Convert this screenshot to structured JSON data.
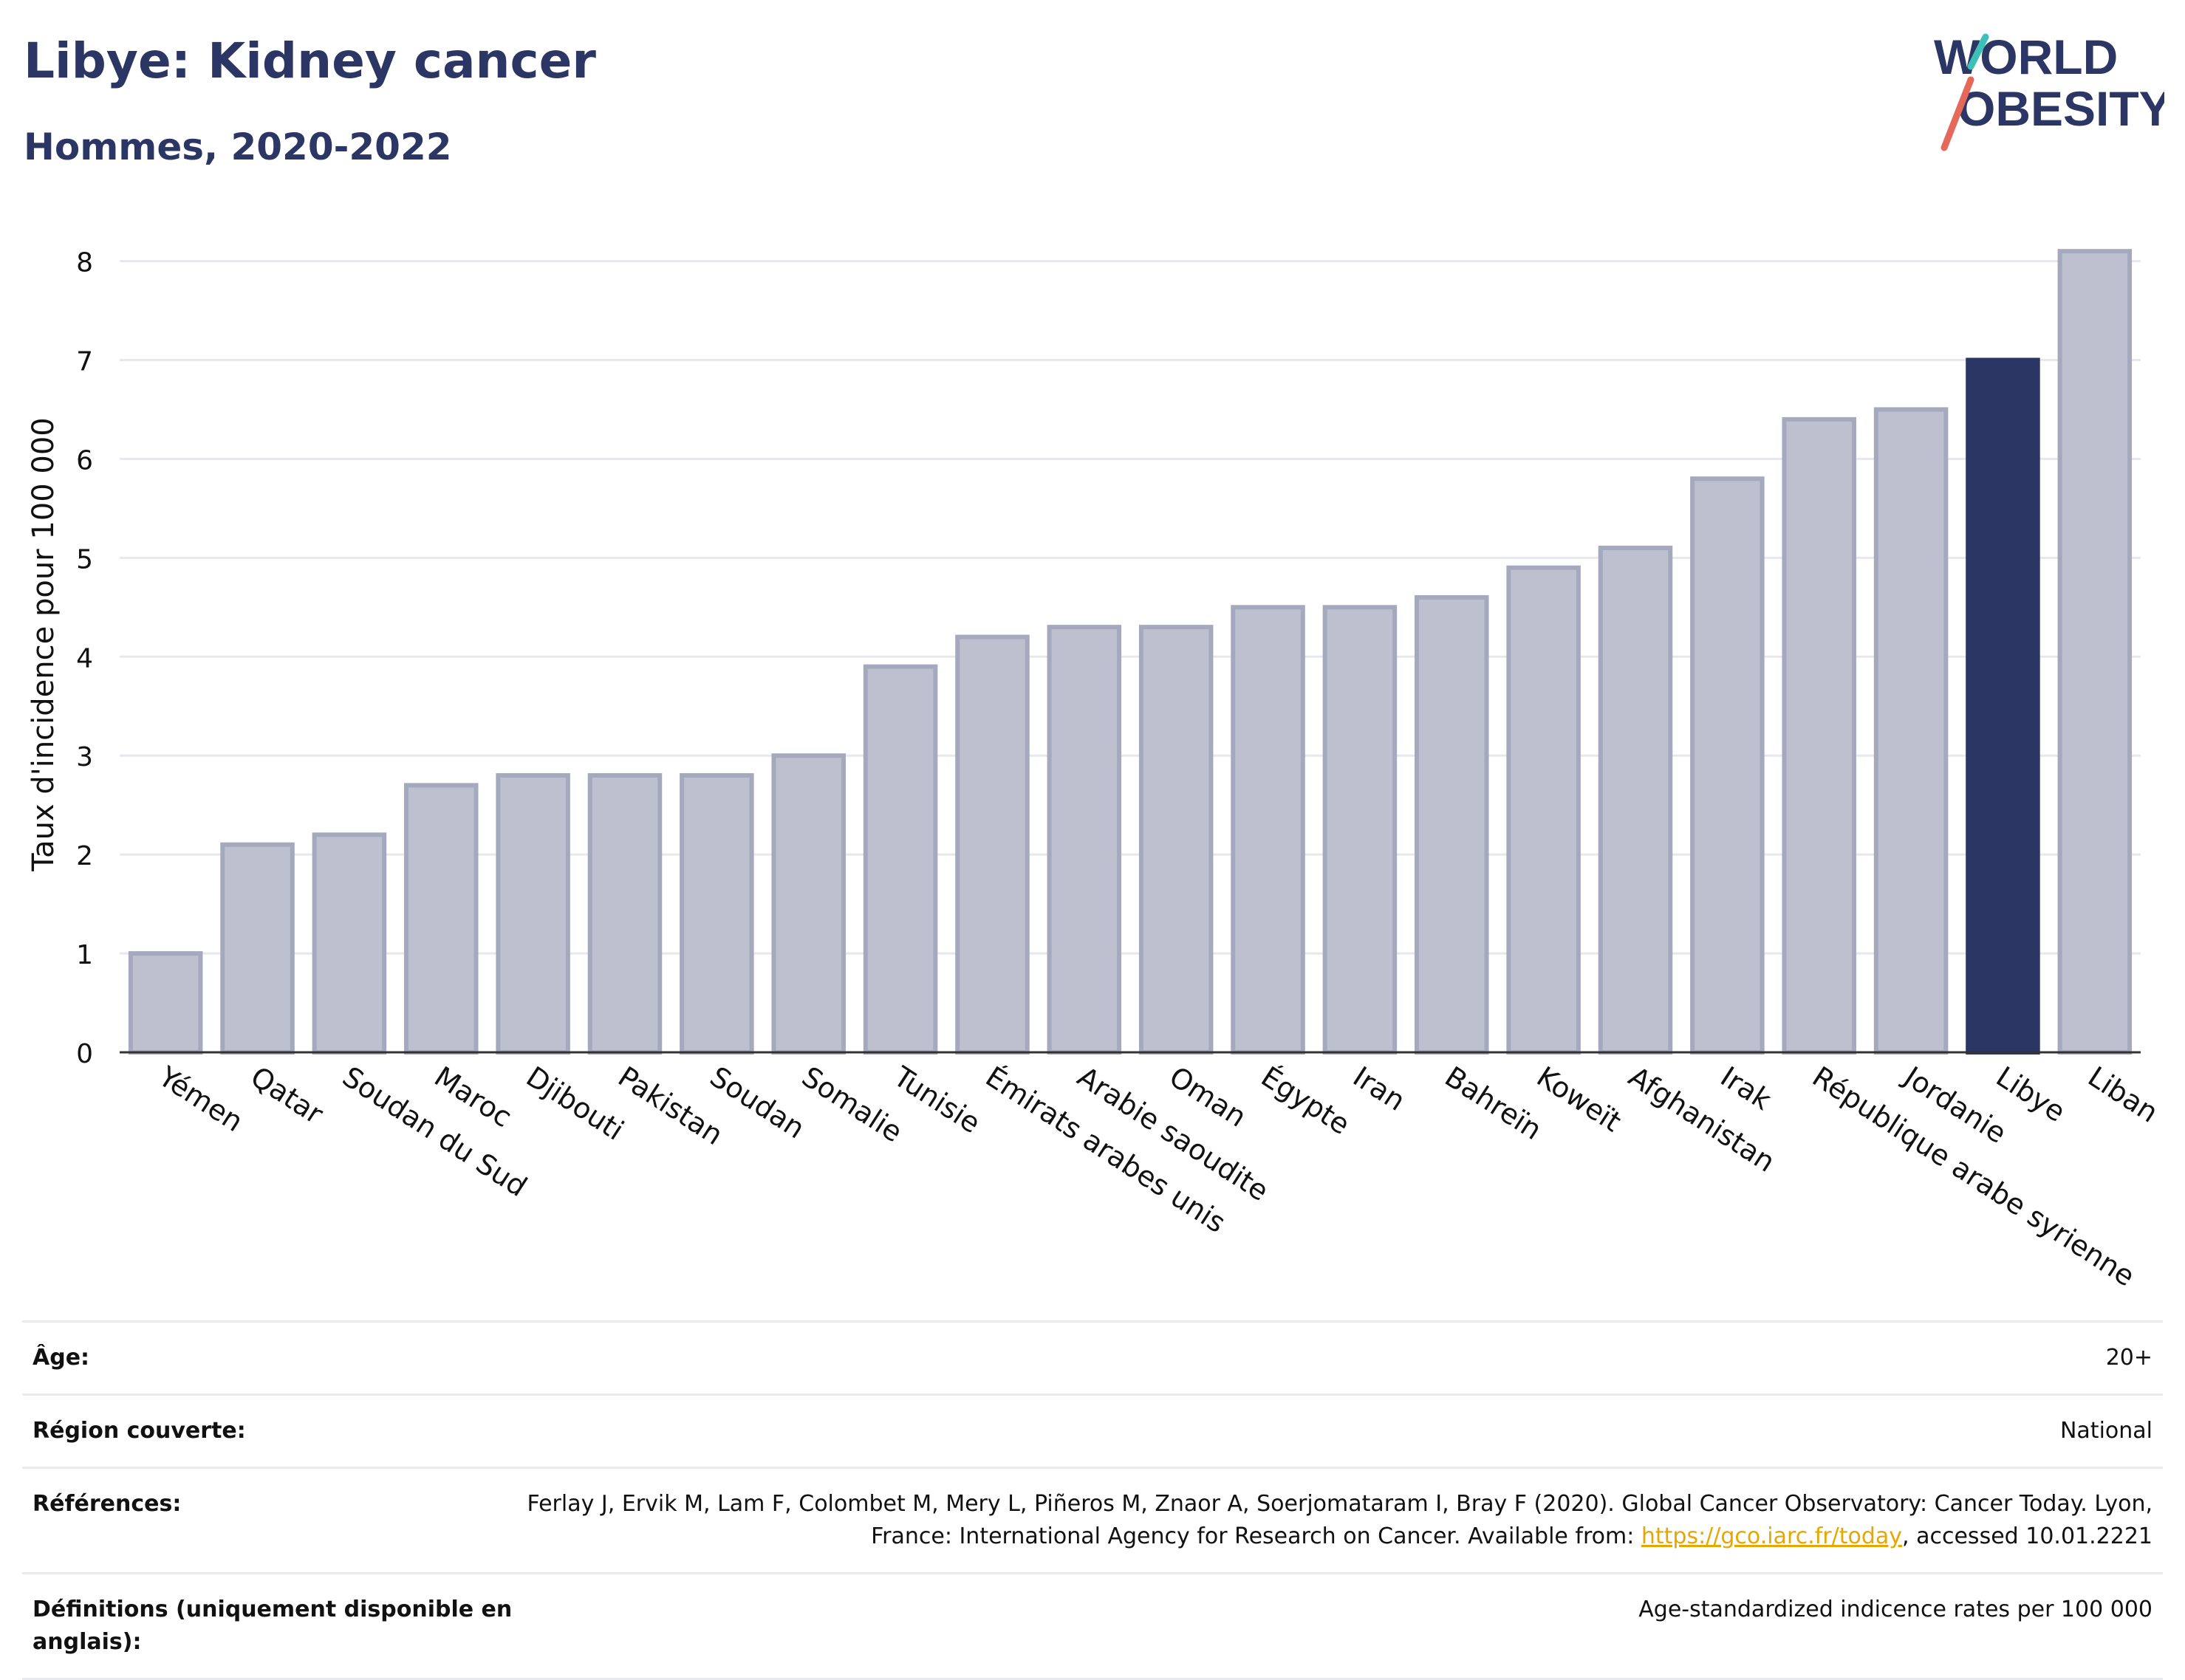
{
  "header": {
    "title": "Libye: Kidney cancer",
    "subtitle": "Hommes, 2020-2022"
  },
  "logo": {
    "line1": "WORLD",
    "line2": "OBESITY"
  },
  "colors": {
    "highlight": "#2b3664",
    "bar_fill": "#bcc0cf",
    "bar_stroke": "#a4a9bd",
    "grid": "#e6e8ee",
    "axis": "#333333",
    "link": "#e6a700"
  },
  "chart_data": {
    "type": "bar",
    "title": "Libye: Kidney cancer",
    "subtitle": "Hommes, 2020-2022",
    "xlabel": "",
    "ylabel": "Taux d'incidence pour 100 000",
    "ylim": [
      0,
      8.4
    ],
    "yticks": [
      0,
      1,
      2,
      3,
      4,
      5,
      6,
      7,
      8
    ],
    "grid": true,
    "highlight": "Libye",
    "categories": [
      "Yémen",
      "Qatar",
      "Soudan du Sud",
      "Maroc",
      "Djibouti",
      "Pakistan",
      "Soudan",
      "Somalie",
      "Tunisie",
      "Émirats arabes unis",
      "Arabie saoudite",
      "Oman",
      "Égypte",
      "Iran",
      "Bahreïn",
      "Koweït",
      "Afghanistan",
      "Irak",
      "République arabe syrienne",
      "Jordanie",
      "Libye",
      "Liban"
    ],
    "values": [
      1.0,
      2.1,
      2.2,
      2.7,
      2.8,
      2.8,
      2.8,
      3.0,
      3.9,
      4.2,
      4.3,
      4.3,
      4.5,
      4.5,
      4.6,
      4.9,
      5.1,
      5.8,
      6.4,
      6.5,
      7.0,
      8.1
    ]
  },
  "meta": {
    "age_label": "Âge:",
    "age_value": "20+",
    "region_label": "Région couverte:",
    "region_value": "National",
    "ref_label": "Références:",
    "ref_text_1": "Ferlay J, Ervik M, Lam F, Colombet M, Mery L, Piñeros M, Znaor A, Soerjomataram I, Bray F (2020). Global Cancer Observatory: Cancer Today. Lyon, France: International Agency for Research on Cancer. Available from: ",
    "ref_link": "https://gco.iarc.fr/today",
    "ref_text_2": ", accessed 10.01.2221",
    "def_label": "Définitions (uniquement disponible en anglais):",
    "def_value": "Age-standardized indicence rates per 100 000"
  }
}
